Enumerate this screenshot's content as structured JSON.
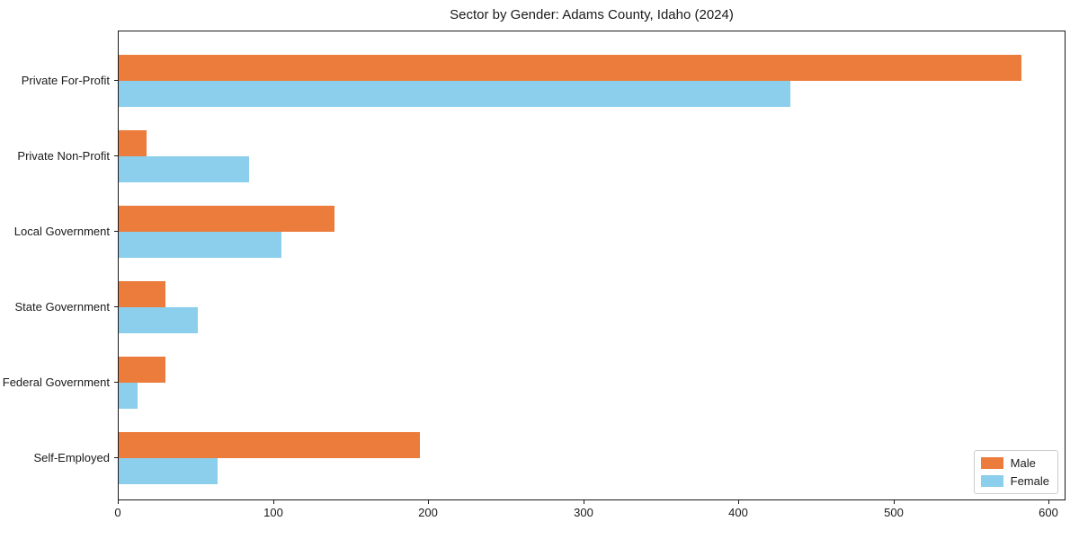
{
  "chart_data": {
    "type": "bar",
    "orientation": "horizontal",
    "title": "Sector by Gender: Adams County, Idaho (2024)",
    "categories": [
      "Private For-Profit",
      "Private Non-Profit",
      "Local Government",
      "State Government",
      "Federal Government",
      "Self-Employed"
    ],
    "series": [
      {
        "name": "Male",
        "color": "#ec7c3c",
        "values": [
          582,
          18,
          139,
          30,
          30,
          194
        ]
      },
      {
        "name": "Female",
        "color": "#8ccfec",
        "values": [
          433,
          84,
          105,
          51,
          12,
          64
        ]
      }
    ],
    "x_ticks": [
      0,
      100,
      200,
      300,
      400,
      500,
      600
    ],
    "xlim": [
      0,
      611
    ],
    "xlabel": "",
    "ylabel": "",
    "grid": false,
    "legend_position": "lower right"
  }
}
